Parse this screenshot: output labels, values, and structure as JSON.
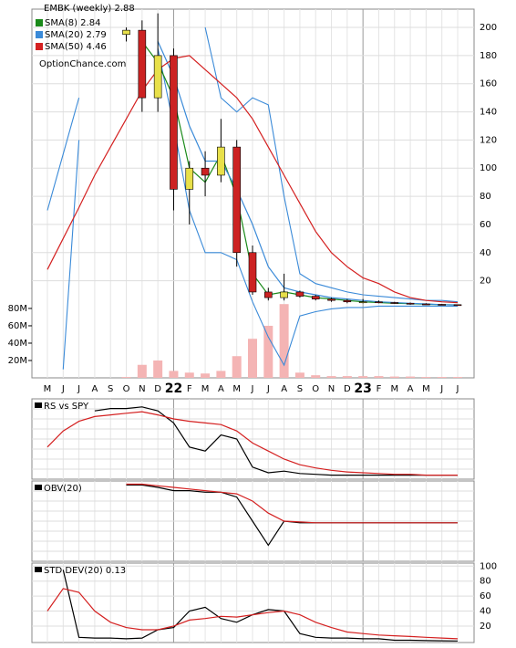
{
  "chart_data": [
    {
      "type": "candlestick",
      "title": "EMBK (weekly) 2.88",
      "annotation": "OptionChance.com",
      "categories": [
        "M",
        "J",
        "J",
        "A",
        "S",
        "O",
        "N",
        "D",
        "22",
        "F",
        "M",
        "A",
        "M",
        "J",
        "J",
        "A",
        "S",
        "O",
        "N",
        "D",
        "23",
        "F",
        "M",
        "A",
        "M",
        "J",
        "J"
      ],
      "ohlc": {
        "up_color": "#e8e04a",
        "down_color": "#cc2222",
        "open": [
          null,
          null,
          null,
          null,
          null,
          195,
          198,
          150,
          180,
          85,
          100,
          95,
          115,
          40,
          12,
          8,
          12,
          9,
          7,
          6,
          5,
          5,
          4.5,
          4,
          3.5,
          3.2,
          3
        ],
        "high": [
          null,
          null,
          null,
          null,
          null,
          200,
          205,
          210,
          185,
          105,
          112,
          135,
          120,
          45,
          15,
          25,
          13,
          10,
          8,
          7,
          7,
          6,
          5,
          4.5,
          4,
          3.5,
          3.2
        ],
        "low": [
          null,
          null,
          null,
          null,
          null,
          190,
          140,
          140,
          70,
          60,
          80,
          90,
          30,
          10,
          6,
          6,
          8,
          6,
          5,
          4,
          4,
          4,
          3.5,
          3,
          3,
          2.8,
          2.7
        ],
        "close": [
          null,
          null,
          null,
          null,
          null,
          198,
          150,
          180,
          85,
          100,
          95,
          115,
          40,
          12,
          8,
          12,
          9,
          7,
          6,
          5,
          5,
          4.5,
          4,
          3.5,
          3.2,
          3,
          2.88
        ]
      },
      "series": [
        {
          "name": "SMA(8) 2.84",
          "color": "#1a8a1a",
          "values": [
            null,
            null,
            null,
            null,
            null,
            null,
            190,
            175,
            150,
            100,
            90,
            110,
            80,
            25,
            10,
            12,
            10,
            8,
            7,
            6,
            5,
            4.5,
            4,
            3.7,
            3.3,
            3,
            2.84
          ]
        },
        {
          "name": "SMA(20) 2.79",
          "color": "#3a8ad8",
          "values": [
            null,
            null,
            null,
            null,
            null,
            null,
            null,
            190,
            165,
            130,
            105,
            105,
            85,
            60,
            30,
            15,
            12,
            10,
            8,
            7,
            6,
            5,
            4.5,
            4,
            3.5,
            3,
            2.79
          ]
        },
        {
          "name": "SMA(50) 4.46",
          "color": "#d42020",
          "values": [
            28,
            50,
            72,
            95,
            115,
            135,
            155,
            170,
            178,
            180,
            170,
            160,
            150,
            135,
            115,
            95,
            75,
            55,
            40,
            30,
            22,
            18,
            12,
            8,
            6,
            5,
            4.46
          ]
        }
      ],
      "bands": {
        "color": "#3a8ad8",
        "upper": [
          70,
          110,
          150,
          null,
          null,
          null,
          null,
          null,
          null,
          null,
          200,
          150,
          140,
          150,
          145,
          80,
          25,
          18,
          15,
          12,
          10,
          9,
          8,
          7,
          6,
          6,
          5
        ],
        "lower": [
          null,
          -43,
          120,
          null,
          null,
          null,
          null,
          185,
          130,
          70,
          40,
          40,
          35,
          5,
          -20,
          -40,
          -5,
          -2,
          0,
          1,
          1,
          2,
          2,
          2,
          2,
          2,
          2
        ]
      },
      "volume": {
        "color": "#f4b4b4",
        "values": [
          null,
          null,
          null,
          null,
          null,
          1000000,
          15000000,
          20000000,
          8000000,
          6000000,
          5000000,
          8000000,
          25000000,
          45000000,
          60000000,
          85000000,
          6000000,
          3000000,
          2000000,
          2000000,
          2000000,
          2000000,
          1500000,
          1500000,
          1000000,
          1000000,
          1000000
        ]
      },
      "ylim": [
        -49,
        213
      ],
      "yticks": [
        20,
        40,
        60,
        80,
        100,
        120,
        140,
        160,
        180,
        200
      ],
      "y2lim": [
        0,
        425000000
      ],
      "y2ticks": [
        {
          "value": 20000000,
          "label": "20M"
        },
        {
          "value": 40000000,
          "label": "40M"
        },
        {
          "value": 60000000,
          "label": "60M"
        },
        {
          "value": 80000000,
          "label": "80M"
        }
      ],
      "grid": true
    },
    {
      "type": "line",
      "title": "RS vs SPY",
      "ylim": [
        0,
        100
      ],
      "series": [
        {
          "color": "#000000",
          "values": [
            null,
            null,
            null,
            85,
            88,
            88,
            90,
            85,
            70,
            40,
            35,
            55,
            50,
            15,
            8,
            10,
            7,
            6,
            5,
            5,
            5,
            5,
            5,
            5,
            5,
            5,
            5
          ]
        },
        {
          "color": "#d42020",
          "values": [
            40,
            60,
            72,
            78,
            80,
            82,
            84,
            80,
            75,
            72,
            70,
            68,
            60,
            45,
            35,
            25,
            18,
            14,
            11,
            9,
            8,
            7,
            6,
            6,
            5,
            5,
            5
          ]
        }
      ]
    },
    {
      "type": "line",
      "title": "OBV(20)",
      "ylim": [
        0,
        100
      ],
      "series": [
        {
          "color": "#000000",
          "values": [
            null,
            null,
            null,
            null,
            null,
            95,
            95,
            92,
            88,
            88,
            86,
            86,
            80,
            50,
            20,
            50,
            48,
            48,
            48,
            48,
            48,
            48,
            48,
            48,
            48,
            48,
            48
          ]
        },
        {
          "color": "#d42020",
          "values": [
            null,
            null,
            null,
            null,
            null,
            96,
            96,
            94,
            92,
            90,
            88,
            86,
            84,
            75,
            60,
            50,
            49,
            48,
            48,
            48,
            48,
            48,
            48,
            48,
            48,
            48,
            48
          ]
        }
      ]
    },
    {
      "type": "line",
      "title": "STD DEV(20) 0.13",
      "ylim": [
        -2,
        104
      ],
      "yticks": [
        20,
        40,
        60,
        80,
        100
      ],
      "series": [
        {
          "color": "#000000",
          "values": [
            null,
            95,
            5,
            4,
            4,
            3,
            4,
            15,
            18,
            40,
            45,
            30,
            25,
            35,
            42,
            40,
            10,
            5,
            4,
            4,
            3,
            3,
            1,
            1,
            0.5,
            0.3,
            0.13
          ]
        },
        {
          "color": "#d42020",
          "values": [
            40,
            70,
            65,
            40,
            25,
            18,
            15,
            15,
            20,
            28,
            30,
            33,
            32,
            35,
            38,
            40,
            35,
            25,
            18,
            12,
            10,
            8,
            7,
            6,
            5,
            4,
            3
          ]
        }
      ]
    }
  ]
}
